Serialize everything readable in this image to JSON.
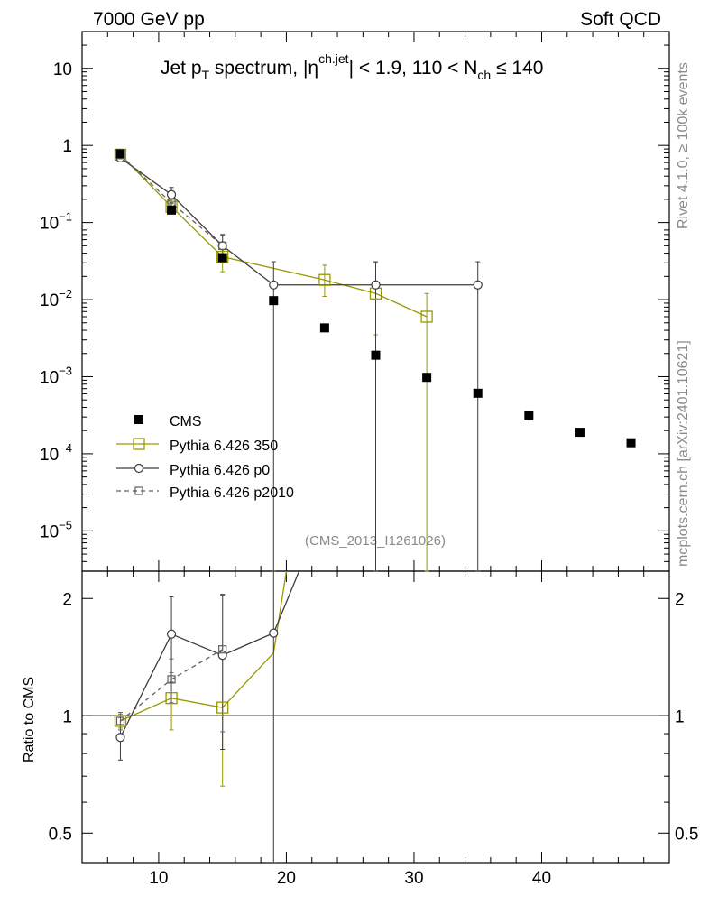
{
  "header": {
    "left": "7000 GeV pp",
    "right": "Soft QCD"
  },
  "side_labels": {
    "rivet": "Rivet 4.1.0, ≥ 100k events",
    "mcplots": "mcplots.cern.ch [arXiv:2401.10621]"
  },
  "chart_data": {
    "type": "scatter",
    "title": "Jet pT spectrum, |ηch.jet| < 1.9, 110 < Nch ≤ 140",
    "title_parts": {
      "t1": "Jet p",
      "t2": "T",
      "t3": " spectrum, |η",
      "t4": "ch.jet",
      "t5": "| < 1.9, 110 < N",
      "t6": "ch",
      "t7": " ≤ 140"
    },
    "watermark": "(CMS_2013_I1261026)",
    "xlim": [
      4,
      50
    ],
    "ylim_main": [
      3e-06,
      30
    ],
    "ylim_ratio": [
      0.42,
      2.35
    ],
    "xticks": [
      10,
      20,
      30,
      40
    ],
    "xtick_labels": [
      "10",
      "20",
      "30",
      "40"
    ],
    "yticks_main": [
      {
        "v": 10,
        "base": "10",
        "exp": ""
      },
      {
        "v": 1,
        "base": "1",
        "exp": ""
      },
      {
        "v": 0.1,
        "base": "10",
        "exp": "−1"
      },
      {
        "v": 0.01,
        "base": "10",
        "exp": "−2"
      },
      {
        "v": 0.001,
        "base": "10",
        "exp": "−3"
      },
      {
        "v": 0.0001,
        "base": "10",
        "exp": "−4"
      },
      {
        "v": 1e-05,
        "base": "10",
        "exp": "−5"
      }
    ],
    "yticks_ratio": [
      {
        "v": 2,
        "label": "2"
      },
      {
        "v": 1,
        "label": "1"
      },
      {
        "v": 0.5,
        "label": "0.5"
      }
    ],
    "ratio_ylabel": "Ratio to CMS",
    "legend": {
      "position": "middle-left",
      "entries": [
        "CMS",
        "Pythia 6.426 350",
        "Pythia 6.426 p0",
        "Pythia 6.426 p2010"
      ]
    },
    "series": [
      {
        "name": "CMS",
        "color": "#000000",
        "marker": "filled-square",
        "x": [
          7,
          11,
          15,
          19,
          23,
          27,
          31,
          35,
          39,
          43,
          47
        ],
        "y": [
          0.78,
          0.145,
          0.035,
          0.0097,
          0.0043,
          0.0019,
          0.00098,
          0.00061,
          0.00031,
          0.00019,
          0.000139
        ]
      },
      {
        "name": "Pythia 6.426 350",
        "color": "#999900",
        "marker": "open-square",
        "line": "solid",
        "x": [
          7,
          11,
          15,
          23,
          27,
          31
        ],
        "y": [
          0.76,
          0.16,
          0.036,
          0.018,
          0.012,
          0.006
        ],
        "err_lo": [
          0.72,
          0.145,
          0.023,
          0.011,
          0.0035,
          1e-06
        ],
        "err_hi": [
          0.8,
          0.175,
          0.05,
          0.028,
          0.03,
          0.012
        ],
        "ratio_x": [
          7,
          11,
          15,
          19,
          20
        ],
        "ratio_y": [
          0.97,
          1.11,
          1.05,
          1.45,
          2.35
        ],
        "ratio_err_lo": [
          0.93,
          0.92,
          0.66,
          null,
          null
        ],
        "ratio_err_hi": [
          1.01,
          1.29,
          1.45,
          null,
          null
        ],
        "ratio_markers": [
          true,
          true,
          true,
          false,
          false
        ]
      },
      {
        "name": "Pythia 6.426 p0",
        "color": "#3c3c3c",
        "marker": "open-circle",
        "line": "solid",
        "x": [
          7,
          11,
          15,
          19,
          27,
          35
        ],
        "y": [
          0.69,
          0.23,
          0.05,
          0.0155,
          0.0155,
          0.0155
        ],
        "err_lo": [
          0.65,
          0.18,
          0.03,
          1e-06,
          1e-06,
          1e-06
        ],
        "err_hi": [
          0.73,
          0.285,
          0.07,
          0.031,
          0.031,
          0.031
        ],
        "ratio_x": [
          7,
          11,
          15,
          19,
          21
        ],
        "ratio_y": [
          0.88,
          1.62,
          1.43,
          1.63,
          2.35
        ],
        "ratio_err_lo": [
          0.77,
          1.22,
          0.82,
          0.35,
          null
        ],
        "ratio_err_hi": [
          0.99,
          2.02,
          2.05,
          3.0,
          null
        ],
        "ratio_markers": [
          true,
          true,
          true,
          true,
          false
        ]
      },
      {
        "name": "Pythia 6.426 p2010",
        "color": "#606060",
        "marker": "open-square-small",
        "line": "dashed",
        "x": [
          7,
          11,
          15
        ],
        "y": [
          0.75,
          0.18,
          0.05
        ],
        "err_lo": [
          0.71,
          0.16,
          0.032
        ],
        "err_hi": [
          0.79,
          0.2,
          0.068
        ],
        "ratio_x": [
          7,
          11,
          15
        ],
        "ratio_y": [
          0.97,
          1.24,
          1.48
        ],
        "ratio_err_lo": [
          0.92,
          1.08,
          0.91
        ],
        "ratio_err_hi": [
          1.02,
          1.4,
          2.04
        ],
        "ratio_markers": [
          true,
          true,
          true
        ]
      }
    ]
  }
}
